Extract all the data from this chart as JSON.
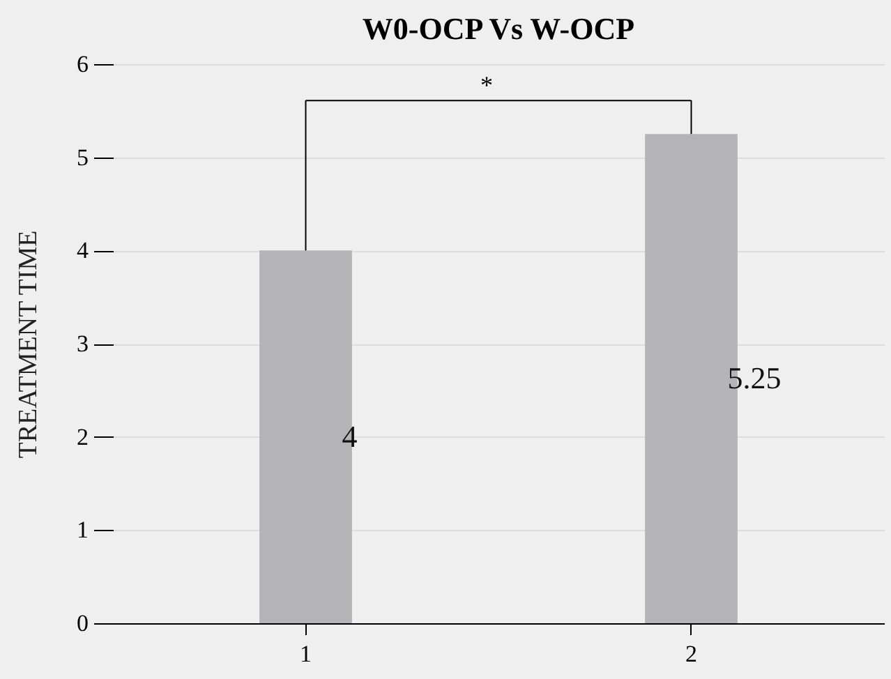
{
  "chart_data": {
    "type": "bar",
    "title": "W0-OCP Vs W-OCP",
    "ylabel": "TREATMENT TIME",
    "categories": [
      "1",
      "2"
    ],
    "values": [
      4,
      5.25
    ],
    "color": "#b4b4b6",
    "ylim": [
      0,
      6
    ],
    "yticks": [
      0,
      1,
      2,
      3,
      4,
      5,
      6
    ],
    "grid": "y",
    "value_labels": [
      "4",
      "5.25"
    ],
    "annotations": [
      "*"
    ]
  }
}
